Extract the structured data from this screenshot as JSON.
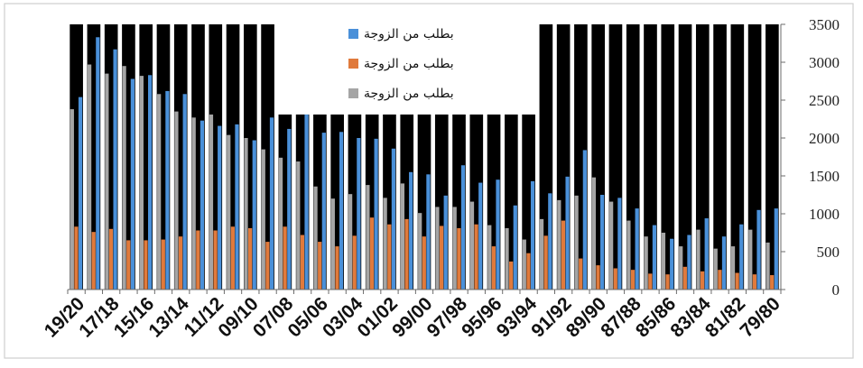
{
  "chart_data": {
    "type": "bar",
    "direction": "rtl",
    "categories": [
      "79/80",
      "80/81",
      "81/82",
      "82/83",
      "83/84",
      "84/85",
      "85/86",
      "86/87",
      "87/88",
      "88/89",
      "89/90",
      "90/91",
      "91/92",
      "92/93",
      "93/94",
      "94/95",
      "95/96",
      "96/97",
      "97/98",
      "98/99",
      "99/00",
      "00/01",
      "01/02",
      "02/03",
      "03/04",
      "04/05",
      "05/06",
      "06/07",
      "07/08",
      "08/09",
      "09/10",
      "10/11",
      "11/12",
      "12/13",
      "13/14",
      "14/15",
      "15/16",
      "16/17",
      "17/18",
      "18/19",
      "19/20"
    ],
    "series": [
      {
        "name": "بطلب من الزوجة",
        "color": "#4a90d9",
        "values": [
          1070,
          1050,
          860,
          700,
          940,
          720,
          670,
          850,
          1070,
          1210,
          1250,
          1840,
          1490,
          1270,
          1430,
          1110,
          1450,
          1410,
          1640,
          1240,
          1520,
          1550,
          1860,
          1990,
          2000,
          2080,
          2070,
          2310,
          2120,
          2270,
          1970,
          2180,
          2160,
          2230,
          2580,
          2620,
          2830,
          2780,
          3170,
          3330,
          2540
        ]
      },
      {
        "name": "بطلب من الزوجة",
        "color": "#e07a3c",
        "values": [
          190,
          200,
          220,
          260,
          240,
          300,
          200,
          210,
          260,
          280,
          320,
          410,
          910,
          710,
          480,
          370,
          570,
          860,
          810,
          840,
          700,
          930,
          860,
          950,
          710,
          570,
          630,
          720,
          830,
          630,
          810,
          830,
          780,
          780,
          700,
          660,
          650,
          650,
          800,
          760,
          830
        ]
      },
      {
        "name": "بطلب من الزوجة",
        "color": "#a5a5a5",
        "values": [
          620,
          790,
          570,
          540,
          790,
          570,
          750,
          700,
          910,
          1160,
          1480,
          1240,
          1180,
          930,
          660,
          810,
          850,
          1160,
          1090,
          1090,
          1010,
          1400,
          1210,
          1380,
          1260,
          1200,
          1360,
          1690,
          1740,
          1850,
          2000,
          2040,
          2310,
          2270,
          2350,
          2580,
          2820,
          2950,
          2850,
          2970,
          2380
        ]
      }
    ],
    "x_tick_labels": [
      "19/20",
      "17/18",
      "15/16",
      "13/14",
      "11/12",
      "09/10",
      "07/08",
      "05/06",
      "03/04",
      "01/02",
      "99/00",
      "97/98",
      "95/96",
      "93/94",
      "91/92",
      "89/90",
      "87/88",
      "85/86",
      "83/84",
      "81/82",
      "79/80"
    ],
    "y_ticks": [
      0,
      500,
      1000,
      1500,
      2000,
      2500,
      3000,
      3500
    ],
    "ylim": [
      0,
      3500
    ],
    "y_axis_side": "right",
    "legend_position": "top-center",
    "title": "",
    "xlabel": "",
    "ylabel": "",
    "background_stripes": "black"
  }
}
